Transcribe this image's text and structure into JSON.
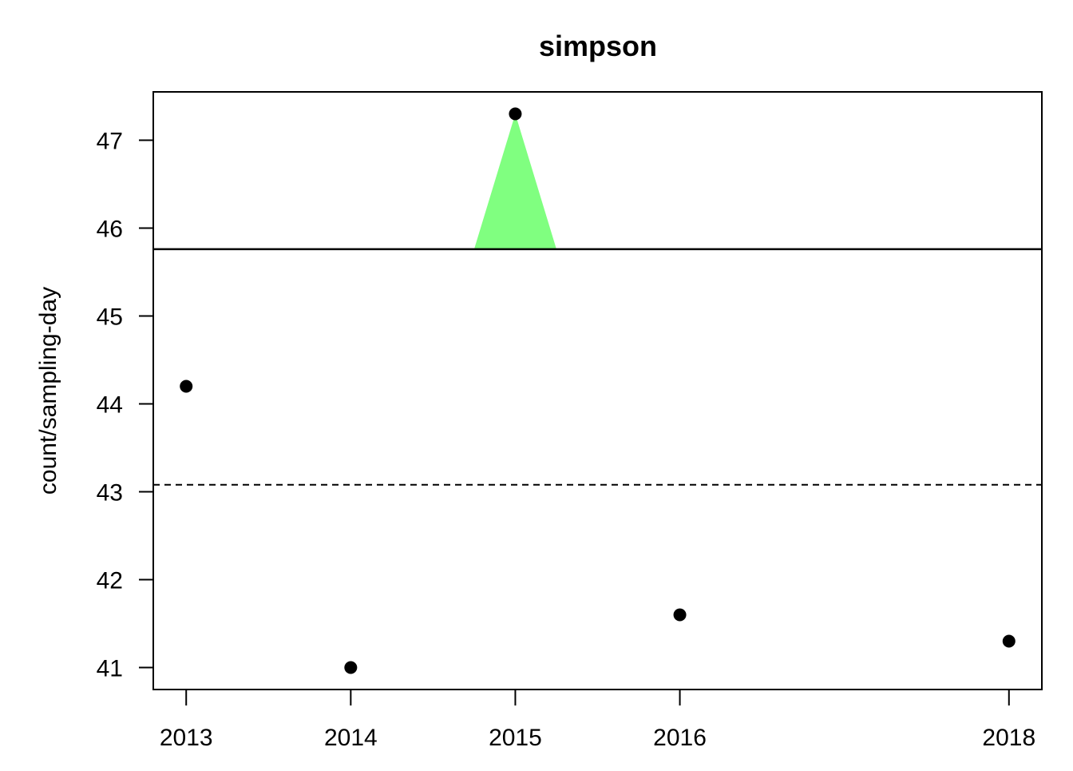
{
  "chart_data": {
    "type": "scatter",
    "title": "simpson",
    "xlabel": "",
    "ylabel": "count/sampling-day",
    "x_ticks": [
      "2013",
      "2014",
      "2015",
      "2016",
      "2018"
    ],
    "y_ticks": [
      "41",
      "42",
      "43",
      "44",
      "45",
      "46",
      "47"
    ],
    "xlim": [
      2012.8,
      2018.2
    ],
    "ylim": [
      40.75,
      47.55
    ],
    "points": [
      {
        "x": 2013,
        "y": 44.2
      },
      {
        "x": 2014,
        "y": 41.0
      },
      {
        "x": 2015,
        "y": 47.3
      },
      {
        "x": 2016,
        "y": 41.6
      },
      {
        "x": 2018,
        "y": 41.3
      }
    ],
    "reference_lines": {
      "solid": 45.76,
      "dashed": 43.08
    },
    "highlight": {
      "color": "#80ff80",
      "x": 2015,
      "y_top": 47.3,
      "x_half_width": 0.25
    },
    "grid": false,
    "legend": "none"
  }
}
